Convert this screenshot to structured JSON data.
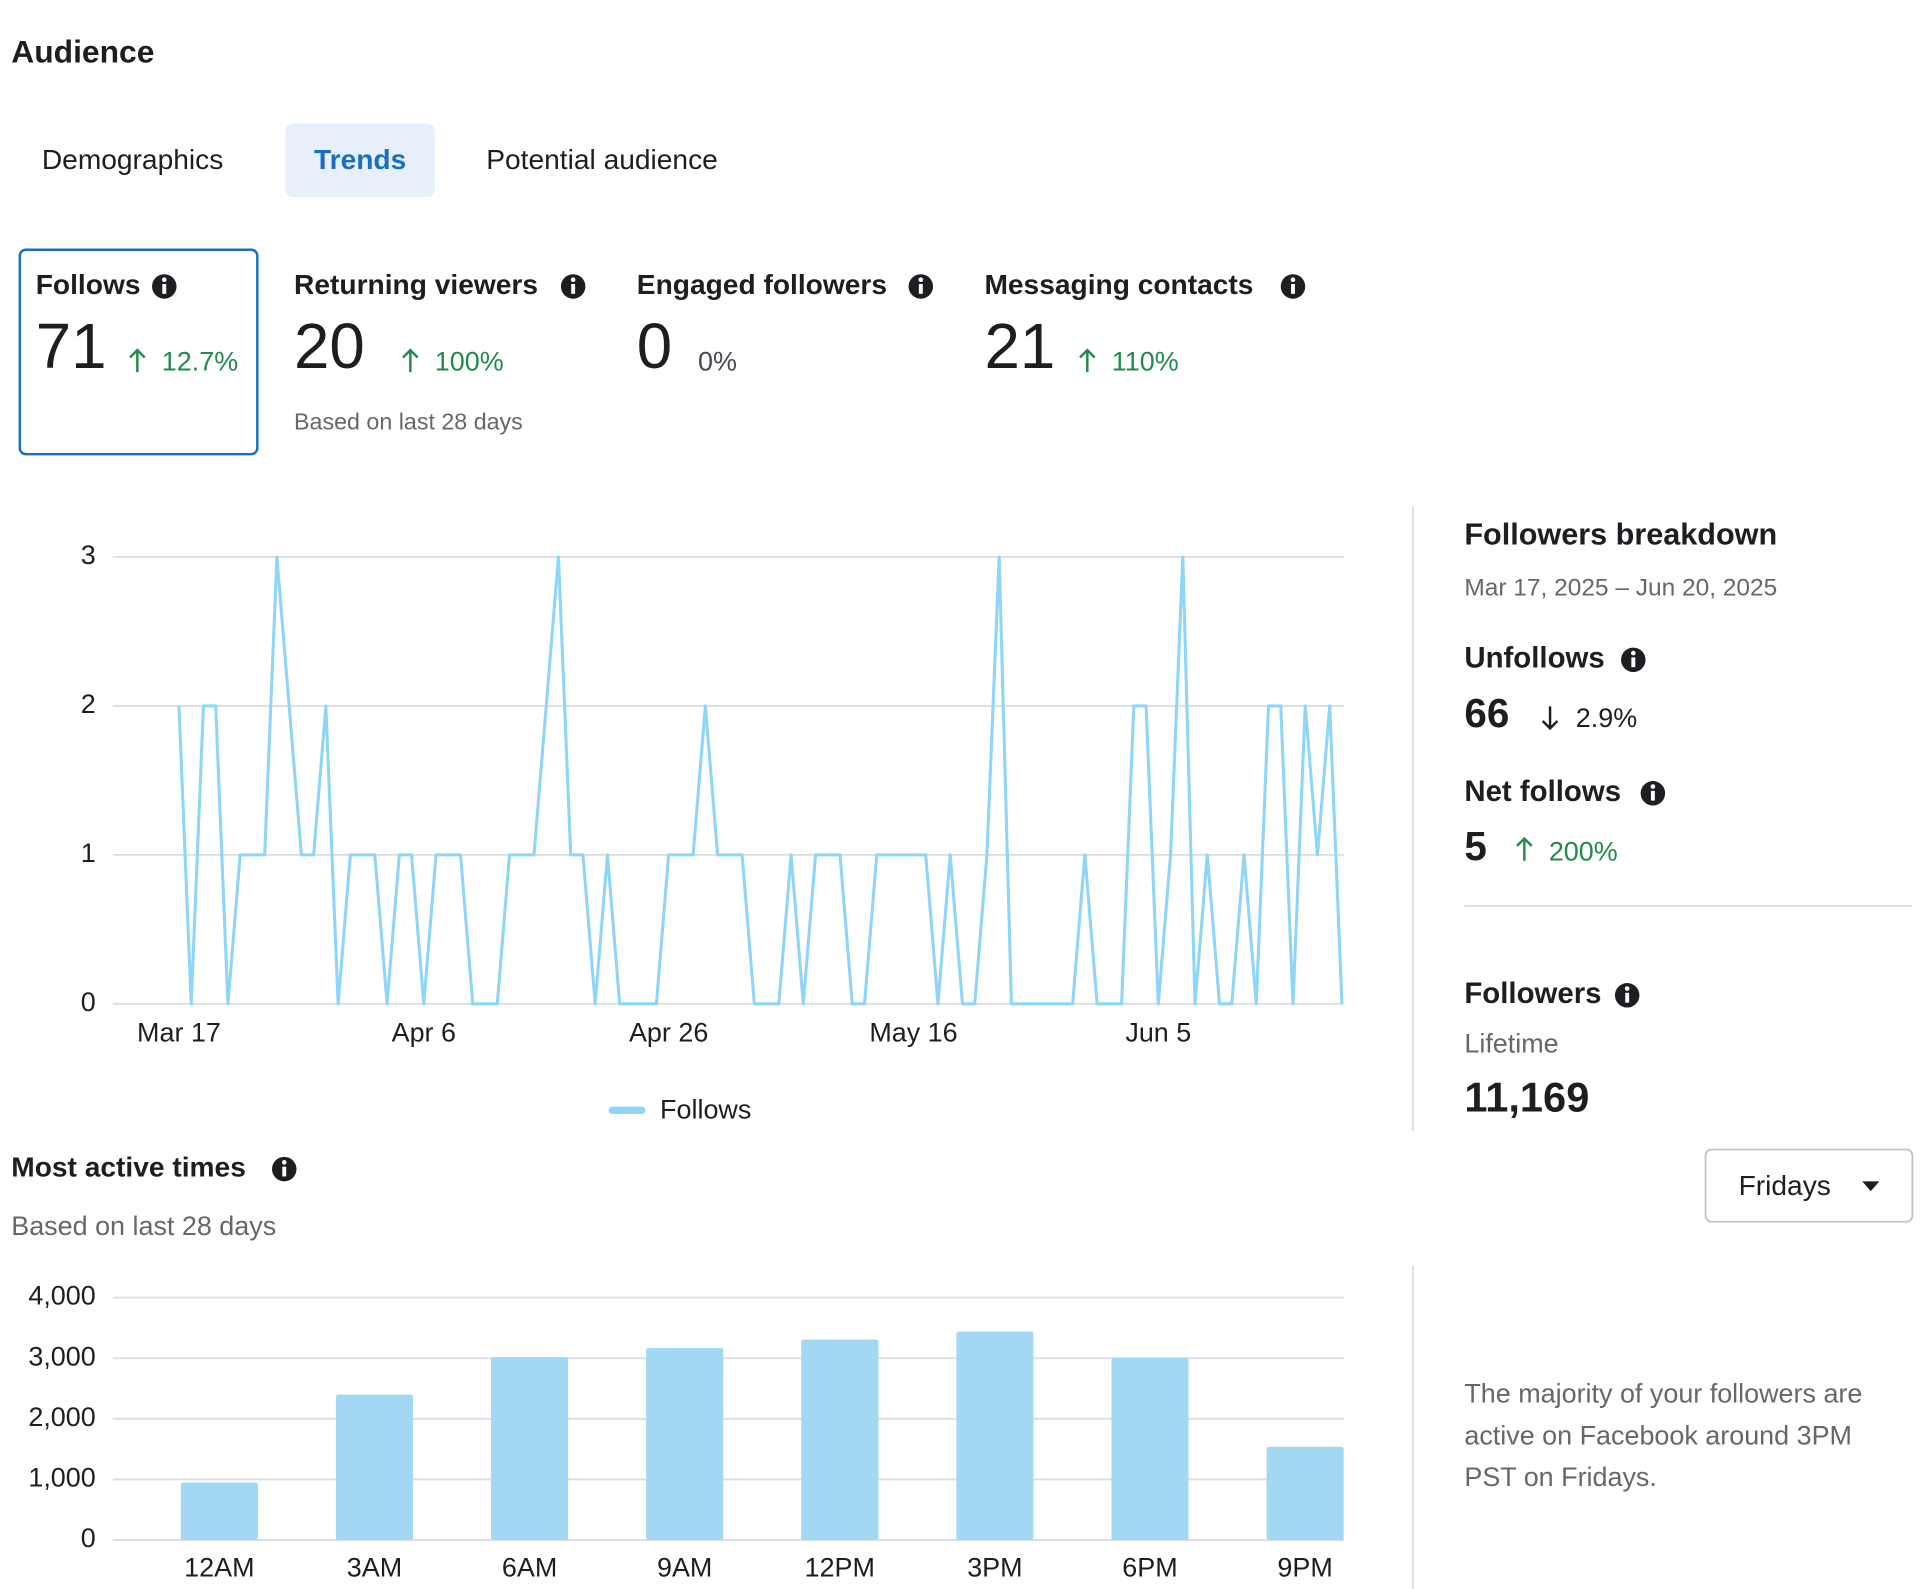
{
  "header": {
    "title": "Audience"
  },
  "tabs": [
    "Demographics",
    "Trends",
    "Potential audience"
  ],
  "metrics": [
    {
      "label": "Follows",
      "value": 71,
      "change": "12.7%"
    },
    {
      "label": "Returning viewers",
      "value": 20,
      "change": "100%"
    },
    {
      "label": "Engaged followers",
      "value": 0,
      "change": "0%"
    },
    {
      "label": "Messaging contacts",
      "value": 21,
      "change": "110%"
    }
  ],
  "metrics_note": "Based on last 28 days",
  "breakdown": {
    "title": "Followers breakdown",
    "date_range": "Mar 17, 2025 – Jun 20, 2025",
    "unfollows": {
      "label": "Unfollows",
      "value": 66,
      "change": "2.9%"
    },
    "net_follows": {
      "label": "Net follows",
      "value": 5,
      "change": "200%"
    },
    "followers": {
      "label": "Followers",
      "period": "Lifetime",
      "value": "11,169"
    }
  },
  "most_active": {
    "title": "Most active times",
    "subtitle": "Based on last 28 days",
    "filter": "Fridays",
    "note": [
      "The majority of your followers are",
      "active on Facebook around 3PM",
      "PST on Fridays."
    ]
  },
  "chart_data": [
    {
      "type": "line",
      "categories": [
        "Mar 17",
        null,
        null,
        null,
        null,
        null,
        null,
        null,
        null,
        null,
        null,
        null,
        null,
        null,
        null,
        null,
        null,
        null,
        null,
        null,
        "Apr 6",
        null,
        null,
        null,
        null,
        null,
        null,
        null,
        null,
        null,
        null,
        null,
        null,
        null,
        null,
        null,
        null,
        null,
        null,
        null,
        "Apr 26",
        null,
        null,
        null,
        null,
        null,
        null,
        null,
        null,
        null,
        null,
        null,
        null,
        null,
        null,
        null,
        null,
        null,
        null,
        null,
        "May 16",
        null,
        null,
        null,
        null,
        null,
        null,
        null,
        null,
        null,
        null,
        null,
        null,
        null,
        null,
        null,
        null,
        null,
        null,
        null,
        "Jun 5",
        null,
        null,
        null,
        null,
        null,
        null,
        null,
        null,
        null,
        null,
        null,
        null,
        null,
        null,
        null
      ],
      "series": [
        {
          "name": "Follows",
          "color": "#8ed5f8",
          "values": [
            2,
            0,
            2,
            2,
            0,
            1,
            1,
            1,
            3,
            2,
            1,
            1,
            2,
            0,
            1,
            1,
            1,
            0,
            1,
            1,
            0,
            1,
            1,
            1,
            0,
            0,
            0,
            1,
            1,
            1,
            2,
            3,
            1,
            1,
            0,
            1,
            0,
            0,
            0,
            0,
            1,
            1,
            1,
            2,
            1,
            1,
            1,
            0,
            0,
            0,
            1,
            0,
            1,
            1,
            1,
            0,
            0,
            1,
            1,
            1,
            1,
            1,
            0,
            1,
            0,
            0,
            1,
            3,
            0,
            0,
            0,
            0,
            0,
            0,
            1,
            0,
            0,
            0,
            2,
            2,
            0,
            1,
            3,
            0,
            1,
            0,
            0,
            1,
            0,
            2,
            2,
            0,
            2,
            1,
            2,
            0
          ]
        }
      ],
      "ylim": [
        0,
        3
      ],
      "yticks": [
        0,
        1,
        2,
        3
      ],
      "grid": true,
      "legend": "bottom"
    },
    {
      "type": "bar",
      "categories": [
        "12AM",
        "3AM",
        "6AM",
        "9AM",
        "12PM",
        "3PM",
        "6PM",
        "9PM"
      ],
      "values": [
        950,
        2400,
        3020,
        3170,
        3310,
        3440,
        3010,
        1540
      ],
      "color": "#a3d8f5",
      "ylim": [
        0,
        4000
      ],
      "yticks": [
        0,
        {
          "value": 1000,
          "label": "1,000"
        },
        {
          "value": 2000,
          "label": "2,000"
        },
        {
          "value": 3000,
          "label": "3,000"
        },
        {
          "value": 4000,
          "label": "4,000"
        }
      ],
      "grid": true
    }
  ]
}
